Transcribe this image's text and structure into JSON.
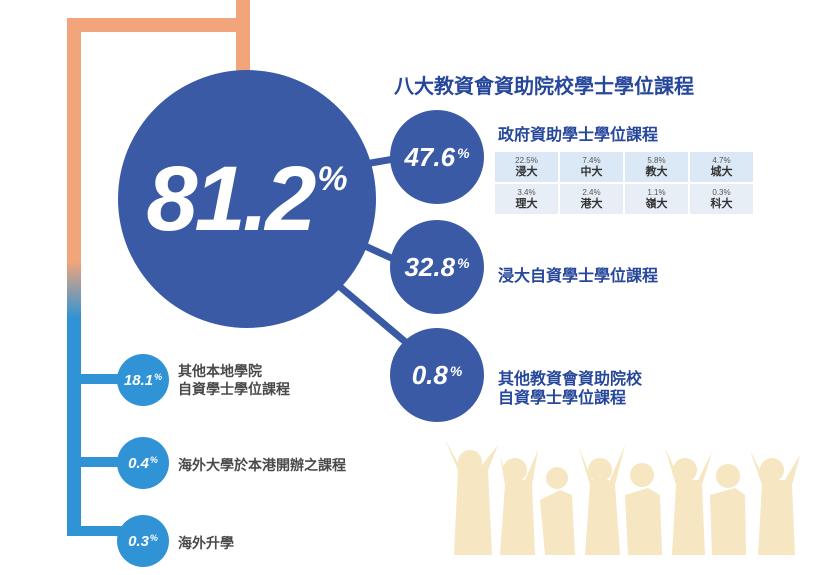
{
  "title": "八大教資會資助院校學士學位課程",
  "main_percent": {
    "value": "81.2",
    "unit": "%"
  },
  "branches": [
    {
      "value": "47.6",
      "unit": "%",
      "label_lines": [
        "政府資助學士學位課程"
      ]
    },
    {
      "value": "32.8",
      "unit": "%",
      "label_lines": [
        "浸大自資學士學位課程"
      ]
    },
    {
      "value": "0.8",
      "unit": "%",
      "label_lines": [
        "其他教資會資助院校",
        "自資學士學位課程"
      ]
    }
  ],
  "gov_table": [
    {
      "percent": "22.5%",
      "uni": "浸大"
    },
    {
      "percent": "7.4%",
      "uni": "中大"
    },
    {
      "percent": "5.8%",
      "uni": "教大"
    },
    {
      "percent": "4.7%",
      "uni": "城大"
    },
    {
      "percent": "3.4%",
      "uni": "理大"
    },
    {
      "percent": "2.4%",
      "uni": "港大"
    },
    {
      "percent": "1.1%",
      "uni": "嶺大"
    },
    {
      "percent": "0.3%",
      "uni": "科大"
    }
  ],
  "others": [
    {
      "value": "18.1",
      "unit": "%",
      "label_lines": [
        "其他本地學院",
        "自資學士學位課程"
      ]
    },
    {
      "value": "0.4",
      "unit": "%",
      "label_lines": [
        "海外大學於本港開辦之課程"
      ]
    },
    {
      "value": "0.3",
      "unit": "%",
      "label_lines": [
        "海外升學"
      ]
    }
  ],
  "colors": {
    "main_blue": "#3a5aa6",
    "light_blue": "#2f93d6",
    "orange": "#f2a57a",
    "silhouette": "#f6e6c2"
  },
  "decoration": "graduates-silhouette"
}
